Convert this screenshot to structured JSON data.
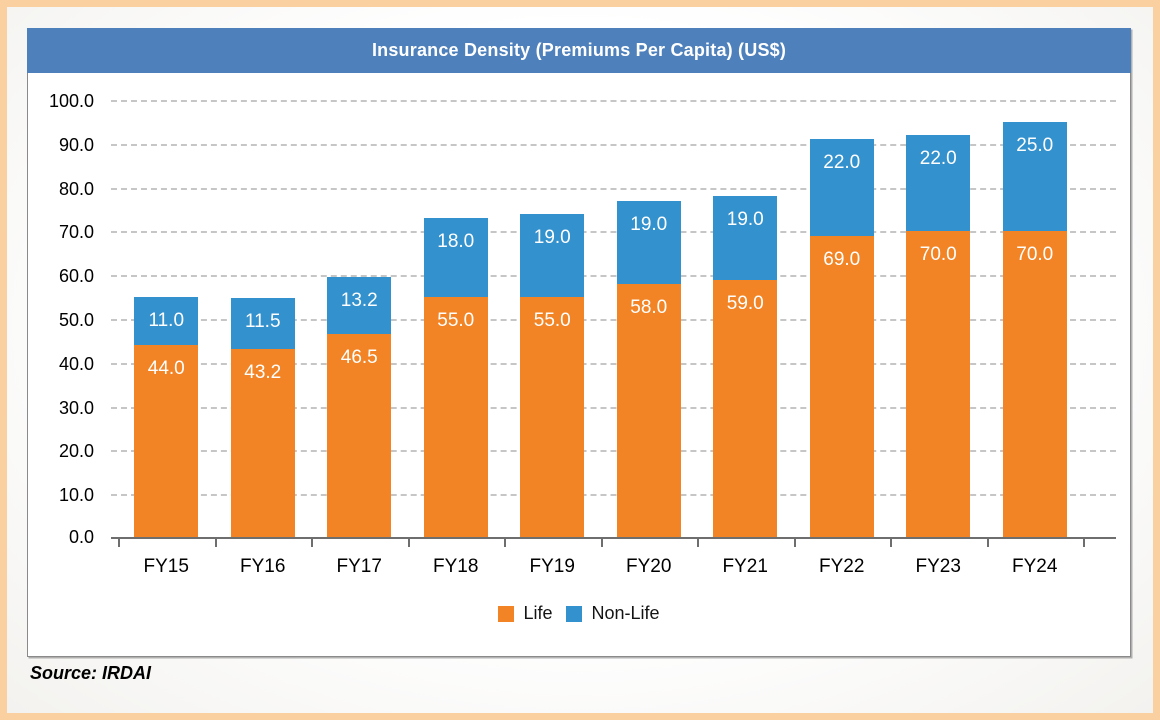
{
  "page": {
    "source_note": "Source: IRDAI"
  },
  "chart_data": {
    "type": "bar",
    "stacked": true,
    "title": "Insurance Density (Premiums Per Capita) (US$)",
    "categories": [
      "FY15",
      "FY16",
      "FY17",
      "FY18",
      "FY19",
      "FY20",
      "FY21",
      "FY22",
      "FY23",
      "FY24"
    ],
    "series": [
      {
        "name": "Life",
        "color": "#f28425",
        "values": [
          44.0,
          43.2,
          46.5,
          55.0,
          55.0,
          58.0,
          59.0,
          69.0,
          70.0,
          70.0
        ]
      },
      {
        "name": "Non-Life",
        "color": "#3391ce",
        "values": [
          11.0,
          11.5,
          13.2,
          18.0,
          19.0,
          19.0,
          19.0,
          22.0,
          22.0,
          25.0
        ]
      }
    ],
    "ylim": [
      0,
      100
    ],
    "ytick_step": 10,
    "ytick_labels": [
      "0.0",
      "10.0",
      "20.0",
      "30.0",
      "40.0",
      "50.0",
      "60.0",
      "70.0",
      "80.0",
      "90.0",
      "100.0"
    ],
    "value_label_decimals": 1,
    "grid": "horizontal-dashed",
    "legend_position": "bottom",
    "colors": {
      "title_bar": "#4e80bc",
      "title_text": "#ffffff",
      "frame_border": "#fad0a0",
      "plot_border": "#8a8a8a",
      "gridline": "#c6c6c6",
      "value_label": "#ffffff"
    }
  }
}
